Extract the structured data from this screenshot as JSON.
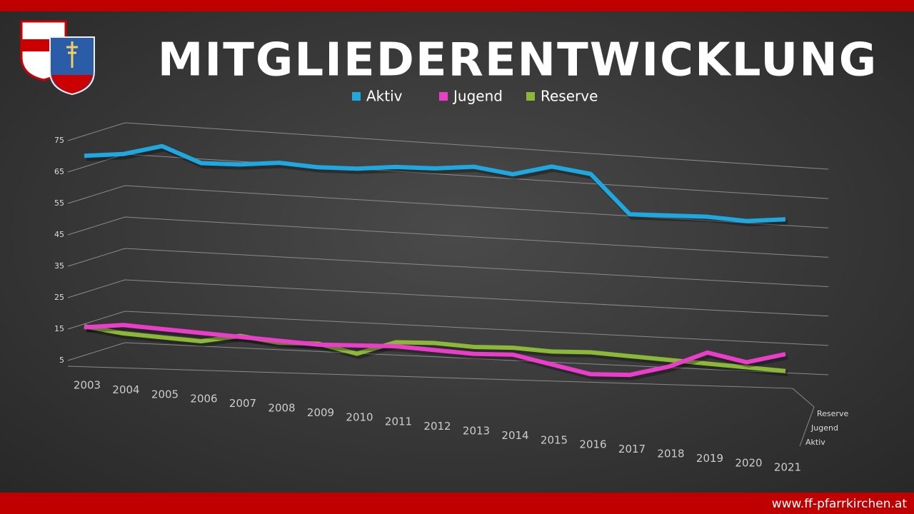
{
  "chart_data": {
    "type": "line3d",
    "title": "MITGLIEDERENTWICKLUNG",
    "footer": "www.ff-pfarrkirchen.at",
    "categories": [
      "2003",
      "2004",
      "2005",
      "2006",
      "2007",
      "2008",
      "2009",
      "2010",
      "2011",
      "2012",
      "2013",
      "2014",
      "2015",
      "2016",
      "2017",
      "2018",
      "2019",
      "2020",
      "2021"
    ],
    "series": [
      {
        "name": "Aktiv",
        "color": "#1fa8e0",
        "values": [
          69,
          70,
          73,
          68,
          68,
          69,
          68,
          68,
          69,
          69,
          70,
          68,
          71,
          69,
          56,
          56,
          56,
          55,
          56
        ]
      },
      {
        "name": "Jugend",
        "color": "#e83ec8",
        "values": [
          15,
          16,
          15,
          14,
          13,
          12,
          11,
          11,
          11,
          10,
          9,
          9,
          6,
          3,
          3,
          6,
          11,
          8,
          11
        ]
      },
      {
        "name": "Reserve",
        "color": "#8cb83a",
        "values": [
          16,
          14,
          13,
          12,
          14,
          12,
          12,
          9,
          13,
          13,
          12,
          12,
          11,
          11,
          10,
          9,
          8,
          7,
          6
        ]
      }
    ],
    "ylim": [
      5,
      75
    ],
    "yticks": [
      5,
      15,
      25,
      35,
      45,
      55,
      65,
      75
    ],
    "grid": true,
    "legend": "top"
  }
}
